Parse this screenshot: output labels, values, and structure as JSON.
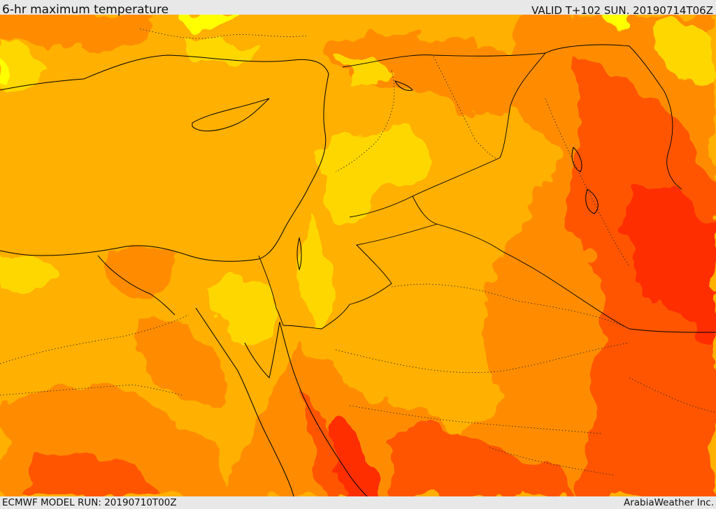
{
  "header": {
    "title": "6-hr maximum temperature",
    "valid": "VALID T+102 SUN. 20190714T06Z"
  },
  "footer": {
    "model_run": "ECMWF MODEL RUN: 20190710T00Z",
    "credit": "ArabiaWeather Inc."
  },
  "map": {
    "colors": {
      "yellow": "#FFFF00",
      "gold": "#FFD700",
      "amber": "#FFB000",
      "orange": "#FF8C00",
      "red_orange": "#FF5500",
      "red": "#FF2E00"
    }
  }
}
